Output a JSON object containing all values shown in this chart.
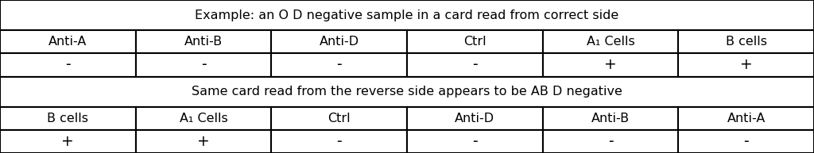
{
  "title1": "Example: an O D negative sample in a card read from correct side",
  "title2": "Same card read from the reverse side appears to be AB D negative",
  "header1": [
    "Anti-A",
    "Anti-B",
    "Anti-D",
    "Ctrl",
    "A₁ Cells",
    "B cells"
  ],
  "row1": [
    "-",
    "-",
    "-",
    "-",
    "+",
    "+"
  ],
  "header2": [
    "B cells",
    "A₁ Cells",
    "Ctrl",
    "Anti-D",
    "Anti-B",
    "Anti-A"
  ],
  "row2": [
    "+",
    "+",
    "-",
    "-",
    "-",
    "-"
  ],
  "bg_color": "#ffffff",
  "text_color": "#000000",
  "border_color": "#000000",
  "title_fontsize": 11.5,
  "cell_fontsize": 11.5,
  "val_fontsize": 13.5
}
